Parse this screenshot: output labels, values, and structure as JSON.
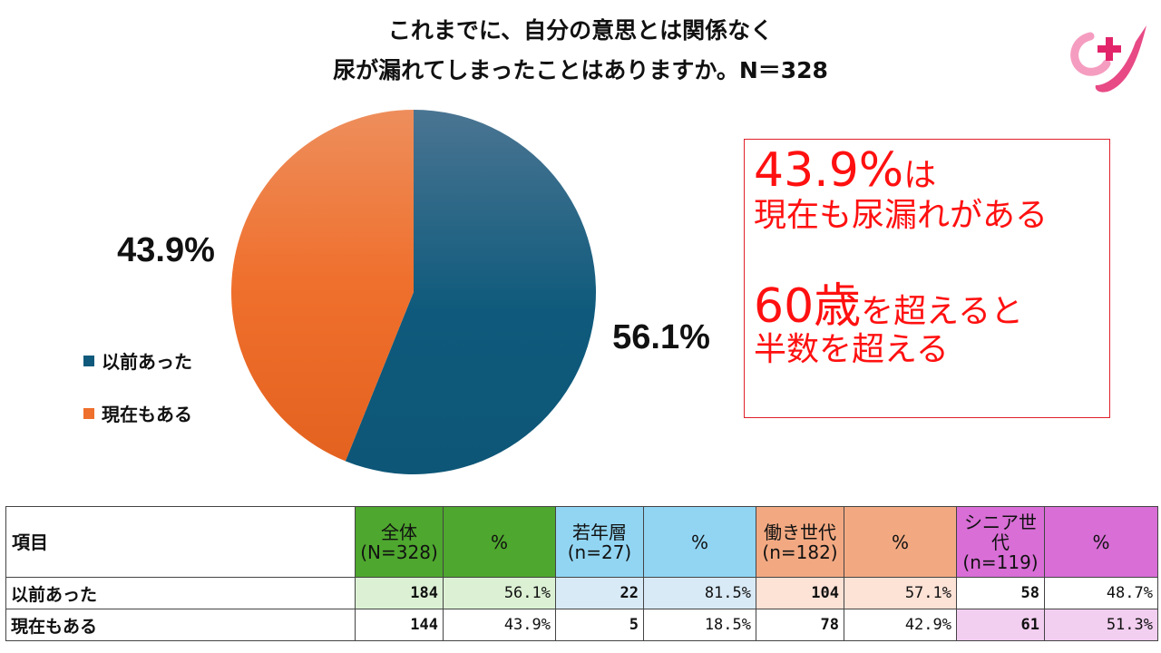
{
  "title": {
    "line1": "これまでに、自分の意思とは関係なく",
    "line2": "尿が漏れてしまったことはありますか。N＝328"
  },
  "chart_data": {
    "type": "pie",
    "slices": [
      {
        "label": "以前あった",
        "value": 56.1,
        "display": "56.1%",
        "color": "#0f5a7c"
      },
      {
        "label": "現在もある",
        "value": 43.9,
        "display": "43.9%",
        "color": "#ef6f2c"
      }
    ],
    "legend_position": "left"
  },
  "callout": {
    "line1_big": "43.9%",
    "line1_small": "は",
    "line2": "現在も尿漏れがある",
    "line3_big": "60歳",
    "line3_small": "を超えると",
    "line4": "半数を超える"
  },
  "table": {
    "headers": [
      {
        "text": "項目"
      },
      {
        "text": "全体\n(N=328)",
        "color": "#4ea72e"
      },
      {
        "text": "%",
        "color": "#4ea72e"
      },
      {
        "text": "若年層\n(n=27)",
        "color": "#92d5f3"
      },
      {
        "text": "%",
        "color": "#92d5f3"
      },
      {
        "text": "働き世代\n(n=182)",
        "color": "#f2a982"
      },
      {
        "text": "%",
        "color": "#f2a982"
      },
      {
        "text": "シニア世\n代\n(n=119)",
        "color": "#d86ed6"
      },
      {
        "text": "%",
        "color": "#d86ed6"
      }
    ],
    "rows": [
      {
        "label": "以前あった",
        "cells": [
          "184",
          "56.1%",
          "22",
          "81.5%",
          "104",
          "57.1%",
          "58",
          "48.7%"
        ],
        "fills": [
          "#dcf1d4",
          "#dcf1d4",
          "#d9eaf7",
          "#d9eaf7",
          "#fde2d6",
          "#fde2d6",
          "#ffffff",
          "#ffffff"
        ]
      },
      {
        "label": "現在もある",
        "cells": [
          "144",
          "43.9%",
          "5",
          "18.5%",
          "78",
          "42.9%",
          "61",
          "51.3%"
        ],
        "fills": [
          "#ffffff",
          "#ffffff",
          "#ffffff",
          "#ffffff",
          "#ffffff",
          "#ffffff",
          "#f2cef0",
          "#f2cef0"
        ]
      }
    ]
  },
  "logo": {
    "icon": "pink-plus-logo-icon"
  }
}
